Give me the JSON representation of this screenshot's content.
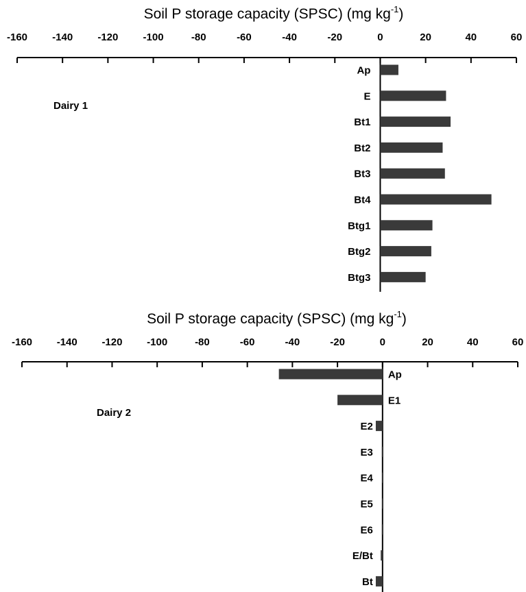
{
  "chart_data": [
    {
      "type": "bar",
      "orientation": "horizontal",
      "xlabel": "Soil P storage capacity (SPSC) (mg kg",
      "xlabel_unit_sup": "-1",
      "xlabel_close": ")",
      "xlim": [
        -160,
        60
      ],
      "xticks": [
        "-160",
        "-140",
        "-120",
        "-100",
        "-80",
        "-60",
        "-40",
        "-20",
        "0",
        "20",
        "40",
        "60"
      ],
      "panel_label": "Dairy 1",
      "category_label_side": "left",
      "categories": [
        "Ap",
        "E",
        "Bt1",
        "Bt2",
        "Bt3",
        "Bt4",
        "Btg1",
        "Btg2",
        "Btg3"
      ],
      "values": [
        8,
        29,
        31,
        27.5,
        28.5,
        49,
        23,
        22.5,
        20
      ],
      "color": "#3a3a3a"
    },
    {
      "type": "bar",
      "orientation": "horizontal",
      "xlabel": "Soil P storage capacity (SPSC) (mg kg",
      "xlabel_unit_sup": "-1",
      "xlabel_close": ")",
      "xlim": [
        -160,
        60
      ],
      "xticks": [
        "-160",
        "-140",
        "-120",
        "-100",
        "-80",
        "-60",
        "-40",
        "-20",
        "0",
        "20",
        "40",
        "60"
      ],
      "panel_label": "Dairy 2",
      "category_label_side": "mixed",
      "categories": [
        "Ap",
        "E1",
        "E2",
        "E3",
        "E4",
        "E5",
        "E6",
        "E/Bt",
        "Bt"
      ],
      "values": [
        -46,
        -20,
        -3,
        -0.3,
        -0.2,
        -0.2,
        -0.3,
        -0.8,
        -3
      ],
      "color": "#3a3a3a"
    }
  ]
}
